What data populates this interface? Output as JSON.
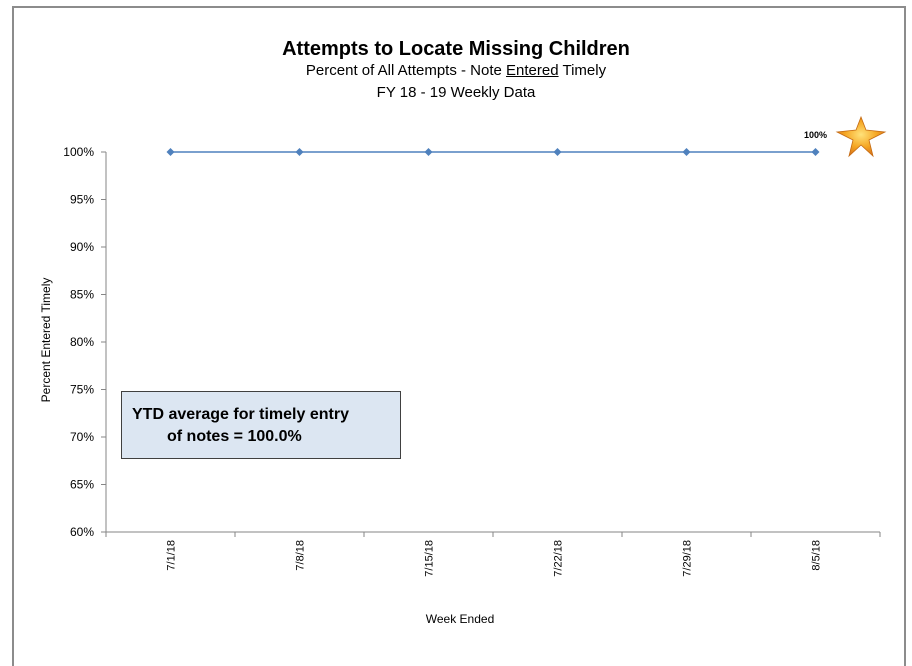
{
  "chart_data": {
    "type": "line",
    "title": "Attempts to Locate Missing Children",
    "subtitle_prefix": "Percent of All Attempts -  Note ",
    "subtitle_underlined": "Entered",
    "subtitle_suffix": " Timely",
    "subtitle2": "FY 18 - 19  Weekly Data",
    "xlabel": "Week Ended",
    "ylabel": "Percent Entered Timely",
    "categories": [
      "7/1/18",
      "7/8/18",
      "7/15/18",
      "7/22/18",
      "7/29/18",
      "8/5/18"
    ],
    "series": [
      {
        "values": [
          100,
          100,
          100,
          100,
          100,
          100
        ],
        "color": "#4f81bd"
      }
    ],
    "ylim": [
      60,
      100
    ],
    "yticks": [
      60,
      65,
      70,
      75,
      80,
      85,
      90,
      95,
      100
    ],
    "ytick_labels": [
      "60%",
      "65%",
      "70%",
      "75%",
      "80%",
      "85%",
      "90%",
      "95%",
      "100%"
    ],
    "last_point_label": "100%",
    "grid": false,
    "annotation": {
      "line1": "YTD average for timely entry",
      "line2": "of notes =  100.0%"
    }
  }
}
